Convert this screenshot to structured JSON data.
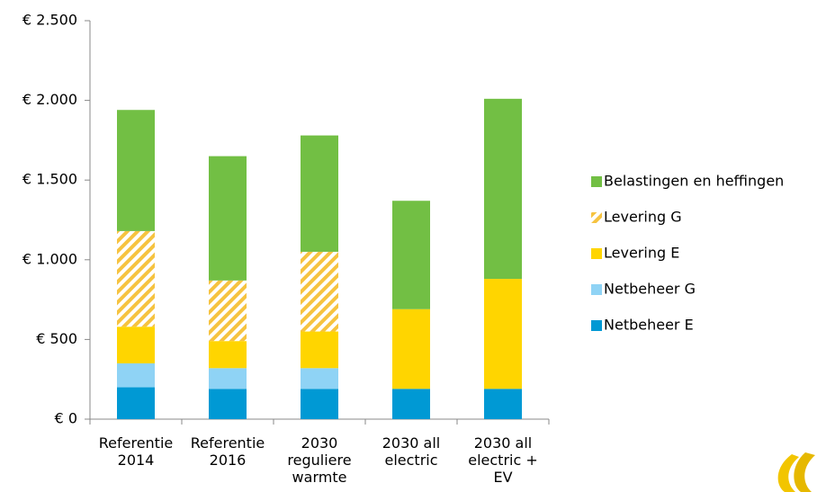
{
  "chart_data": {
    "type": "stacked-bar",
    "categories": [
      "Referentie 2014",
      "Referentie 2016",
      "2030 reguliere warmte",
      "2030 all electric",
      "2030 all electric + EV"
    ],
    "series": [
      {
        "name": "Netbeheer E",
        "color": "#0099d4",
        "values": [
          200,
          190,
          190,
          190,
          190
        ]
      },
      {
        "name": "Netbeheer G",
        "color": "#8fd3f5",
        "values": [
          150,
          130,
          130,
          0,
          0
        ]
      },
      {
        "name": "Levering E",
        "color": "#ffd500",
        "values": [
          230,
          170,
          230,
          500,
          690
        ]
      },
      {
        "name": "Levering G",
        "color": "#f6c340",
        "hatch": true,
        "values": [
          600,
          380,
          500,
          0,
          0
        ]
      },
      {
        "name": "Belastingen en heffingen",
        "color": "#72bf44",
        "values": [
          760,
          780,
          730,
          680,
          1130
        ]
      }
    ],
    "ylim": [
      0,
      2500
    ],
    "yticks": [
      {
        "value": 0,
        "label": "€ 0"
      },
      {
        "value": 500,
        "label": "€ 500"
      },
      {
        "value": 1000,
        "label": "€ 1.000"
      },
      {
        "value": 1500,
        "label": "€ 1.500"
      },
      {
        "value": 2000,
        "label": "€ 2.000"
      },
      {
        "value": 2500,
        "label": "€ 2.500"
      }
    ],
    "legend": "right"
  }
}
